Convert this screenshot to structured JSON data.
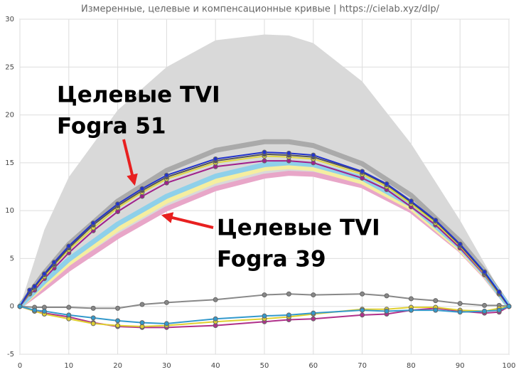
{
  "chart_data": {
    "type": "line",
    "title": "Измеренные, целевые и компенсационные кривые | https://cielab.xyz/dlp/",
    "xlim": [
      0,
      100
    ],
    "ylim": [
      -5,
      30
    ],
    "xticks": [
      0,
      10,
      20,
      30,
      40,
      50,
      60,
      70,
      80,
      90,
      100
    ],
    "yticks": [
      -5,
      0,
      5,
      10,
      15,
      20,
      25,
      30
    ],
    "grid": true,
    "annotations": [
      [
        "Целевые TVI",
        "Fogra 51"
      ],
      [
        "Целевые TVI",
        "Fogra 39"
      ]
    ],
    "series": [
      {
        "style": "area",
        "color": "#d9d9d9",
        "x": [
          0,
          5,
          10,
          20,
          30,
          40,
          50,
          55,
          60,
          70,
          80,
          90,
          95,
          100
        ],
        "values": [
          0,
          8,
          13.5,
          20.5,
          25,
          27.8,
          28.4,
          28.3,
          27.5,
          23.5,
          17,
          9,
          4.5,
          0
        ]
      },
      {
        "style": "band",
        "color": "#aaaaaa",
        "x": [
          0,
          5,
          10,
          20,
          30,
          40,
          50,
          55,
          60,
          70,
          80,
          90,
          95,
          100
        ],
        "values": [
          0,
          3.5,
          6.5,
          11,
          14.2,
          16.3,
          17.2,
          17.2,
          16.8,
          14.9,
          11.6,
          6.8,
          3.7,
          0
        ]
      },
      {
        "style": "band",
        "color": "#e8a6c8",
        "x": [
          0,
          5,
          10,
          20,
          30,
          40,
          50,
          55,
          60,
          70,
          80,
          90,
          95,
          100
        ],
        "values": [
          0,
          1.9,
          3.9,
          7.3,
          10.2,
          12.3,
          13.6,
          13.9,
          13.8,
          12.6,
          10,
          5.9,
          3.2,
          0
        ]
      },
      {
        "style": "band",
        "color": "#f5eea0",
        "x": [
          0,
          5,
          10,
          20,
          30,
          40,
          50,
          55,
          60,
          70,
          80,
          90,
          95,
          100
        ],
        "values": [
          0,
          2.3,
          4.5,
          8.1,
          11,
          13.1,
          14.4,
          14.6,
          14.4,
          13,
          10.3,
          6,
          3.3,
          0
        ]
      },
      {
        "style": "band",
        "color": "#8ed0ea",
        "x": [
          0,
          5,
          10,
          20,
          30,
          40,
          50,
          55,
          60,
          70,
          80,
          90,
          95,
          100
        ],
        "values": [
          0,
          2.6,
          4.9,
          8.6,
          11.5,
          13.6,
          14.8,
          15,
          14.8,
          13.4,
          10.6,
          6.2,
          3.4,
          0
        ]
      },
      {
        "style": "line",
        "color": "#a0208c",
        "x": [
          0,
          2,
          3,
          5,
          7,
          10,
          15,
          20,
          25,
          30,
          40,
          50,
          55,
          60,
          70,
          75,
          80,
          85,
          90,
          95,
          98,
          100
        ],
        "values": [
          0,
          1.3,
          1.7,
          2.9,
          4,
          5.6,
          7.9,
          9.9,
          11.5,
          12.9,
          14.6,
          15.2,
          15.2,
          15,
          13.4,
          12.2,
          10.4,
          8.5,
          6.1,
          3.3,
          1.3,
          0
        ]
      },
      {
        "style": "line",
        "color": "#e0d840",
        "x": [
          0,
          2,
          3,
          5,
          7,
          10,
          15,
          20,
          25,
          30,
          40,
          50,
          55,
          60,
          70,
          75,
          80,
          85,
          90,
          95,
          98,
          100
        ],
        "values": [
          0,
          1.4,
          1.9,
          3.1,
          4.3,
          5.9,
          8.2,
          10.3,
          11.9,
          13.3,
          15,
          15.7,
          15.6,
          15.4,
          13.8,
          12.5,
          10.7,
          8.7,
          6.3,
          3.4,
          1.3,
          0
        ]
      },
      {
        "style": "line",
        "color": "#555555",
        "x": [
          0,
          2,
          3,
          5,
          7,
          10,
          15,
          20,
          25,
          30,
          40,
          50,
          55,
          60,
          70,
          75,
          80,
          85,
          90,
          95,
          98,
          100
        ],
        "values": [
          0,
          1.5,
          2,
          3.3,
          4.4,
          6.1,
          8.5,
          10.5,
          12.1,
          13.5,
          15.2,
          15.9,
          15.8,
          15.6,
          14,
          12.7,
          10.9,
          8.9,
          6.4,
          3.5,
          1.4,
          0
        ]
      },
      {
        "style": "line",
        "color": "#2233cc",
        "x": [
          0,
          2,
          3,
          5,
          7,
          10,
          15,
          20,
          25,
          30,
          40,
          50,
          55,
          60,
          70,
          75,
          80,
          85,
          90,
          95,
          98,
          100
        ],
        "values": [
          0,
          1.7,
          2.1,
          3.4,
          4.6,
          6.3,
          8.7,
          10.7,
          12.3,
          13.7,
          15.4,
          16.1,
          16,
          15.8,
          14.1,
          12.8,
          11,
          9,
          6.5,
          3.6,
          1.5,
          0
        ]
      },
      {
        "style": "line",
        "color": "#888888",
        "x": [
          0,
          3,
          5,
          10,
          15,
          20,
          25,
          30,
          40,
          50,
          55,
          60,
          70,
          75,
          80,
          85,
          90,
          95,
          98,
          100
        ],
        "values": [
          0,
          -0.1,
          -0.1,
          -0.1,
          -0.2,
          -0.2,
          0.2,
          0.4,
          0.7,
          1.2,
          1.3,
          1.2,
          1.3,
          1.1,
          0.8,
          0.6,
          0.3,
          0.1,
          0.1,
          0
        ]
      },
      {
        "style": "line",
        "color": "#b0308a",
        "x": [
          0,
          3,
          5,
          10,
          15,
          20,
          25,
          30,
          40,
          50,
          55,
          60,
          70,
          75,
          80,
          85,
          90,
          95,
          98,
          100
        ],
        "values": [
          0,
          -0.5,
          -0.7,
          -1.1,
          -1.7,
          -2.1,
          -2.2,
          -2.2,
          -2,
          -1.6,
          -1.4,
          -1.3,
          -0.9,
          -0.8,
          -0.4,
          -0.2,
          -0.5,
          -0.7,
          -0.6,
          0
        ]
      },
      {
        "style": "line",
        "color": "#e0d030",
        "x": [
          0,
          3,
          5,
          10,
          15,
          20,
          25,
          30,
          40,
          50,
          55,
          60,
          70,
          75,
          80,
          85,
          90,
          95,
          98,
          100
        ],
        "values": [
          0,
          -0.5,
          -0.8,
          -1.3,
          -1.8,
          -2,
          -2.1,
          -2,
          -1.6,
          -1.3,
          -1.1,
          -0.8,
          -0.3,
          -0.3,
          -0.1,
          -0.1,
          -0.4,
          -0.5,
          -0.2,
          0
        ]
      },
      {
        "style": "line",
        "color": "#3399cc",
        "x": [
          0,
          3,
          5,
          10,
          15,
          20,
          25,
          30,
          40,
          50,
          55,
          60,
          70,
          75,
          80,
          85,
          90,
          95,
          98,
          100
        ],
        "values": [
          0,
          -0.4,
          -0.5,
          -0.9,
          -1.2,
          -1.5,
          -1.7,
          -1.8,
          -1.3,
          -1,
          -0.9,
          -0.7,
          -0.4,
          -0.5,
          -0.4,
          -0.4,
          -0.6,
          -0.5,
          -0.4,
          0
        ]
      }
    ]
  }
}
